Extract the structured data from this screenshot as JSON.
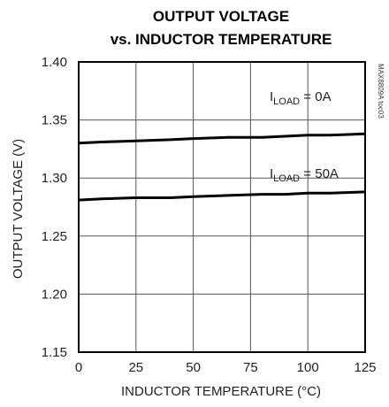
{
  "chart_data": {
    "type": "line",
    "title": [
      "OUTPUT VOLTAGE",
      "vs. INDUCTOR TEMPERATURE"
    ],
    "xlabel": "INDUCTOR TEMPERATURE (°C)",
    "ylabel": "OUTPUT VOLTAGE (V)",
    "xlim": [
      0,
      125
    ],
    "ylim": [
      1.15,
      1.4
    ],
    "xticks": [
      0,
      25,
      50,
      75,
      100,
      125
    ],
    "yticks": [
      1.15,
      1.2,
      1.25,
      1.3,
      1.35,
      1.4
    ],
    "xtick_labels": [
      "0",
      "25",
      "50",
      "75",
      "100",
      "125"
    ],
    "ytick_labels": [
      "1.15",
      "1.20",
      "1.25",
      "1.30",
      "1.35",
      "1.40"
    ],
    "grid": true,
    "side_note": "MAX8809A toc03",
    "series": [
      {
        "name": "ILOAD = 0A",
        "label_main": "I",
        "label_sub": "LOAD",
        "label_rest": " = 0A",
        "x": [
          0,
          10,
          25,
          40,
          50,
          65,
          80,
          90,
          100,
          110,
          125
        ],
        "y": [
          1.33,
          1.331,
          1.332,
          1.333,
          1.334,
          1.335,
          1.335,
          1.336,
          1.337,
          1.337,
          1.338
        ]
      },
      {
        "name": "ILOAD = 50A",
        "label_main": "I",
        "label_sub": "LOAD",
        "label_rest": " = 50A",
        "x": [
          0,
          10,
          25,
          40,
          50,
          65,
          80,
          90,
          100,
          110,
          125
        ],
        "y": [
          1.281,
          1.282,
          1.283,
          1.283,
          1.284,
          1.285,
          1.286,
          1.286,
          1.287,
          1.287,
          1.288
        ]
      }
    ]
  }
}
